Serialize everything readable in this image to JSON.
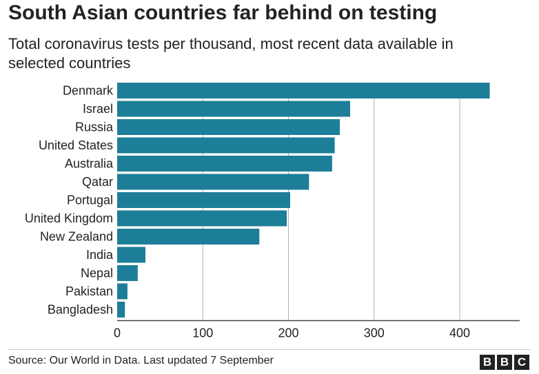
{
  "header": {
    "title": "South Asian countries far behind on testing",
    "subtitle": "Total coronavirus tests per thousand, most recent data available in selected countries"
  },
  "footer": {
    "source": "Source: Our World in Data. Last updated 7 September",
    "logo_letters": [
      "B",
      "B",
      "C"
    ]
  },
  "colors": {
    "bar": "#1d7e99",
    "grid": "#b0b0b0",
    "axis": "#444444",
    "text": "#222222"
  },
  "chart_data": {
    "type": "bar",
    "orientation": "horizontal",
    "categories": [
      "Denmark",
      "Israel",
      "Russia",
      "United States",
      "Australia",
      "Qatar",
      "Portugal",
      "United Kingdom",
      "New Zealand",
      "India",
      "Nepal",
      "Pakistan",
      "Bangladesh"
    ],
    "values": [
      435,
      272,
      260,
      254,
      251,
      224,
      202,
      198,
      166,
      33,
      24,
      12,
      9
    ],
    "xlim": [
      0,
      470
    ],
    "xticks": [
      0,
      100,
      200,
      300,
      400
    ],
    "grid": true,
    "xlabel": "",
    "ylabel": ""
  }
}
